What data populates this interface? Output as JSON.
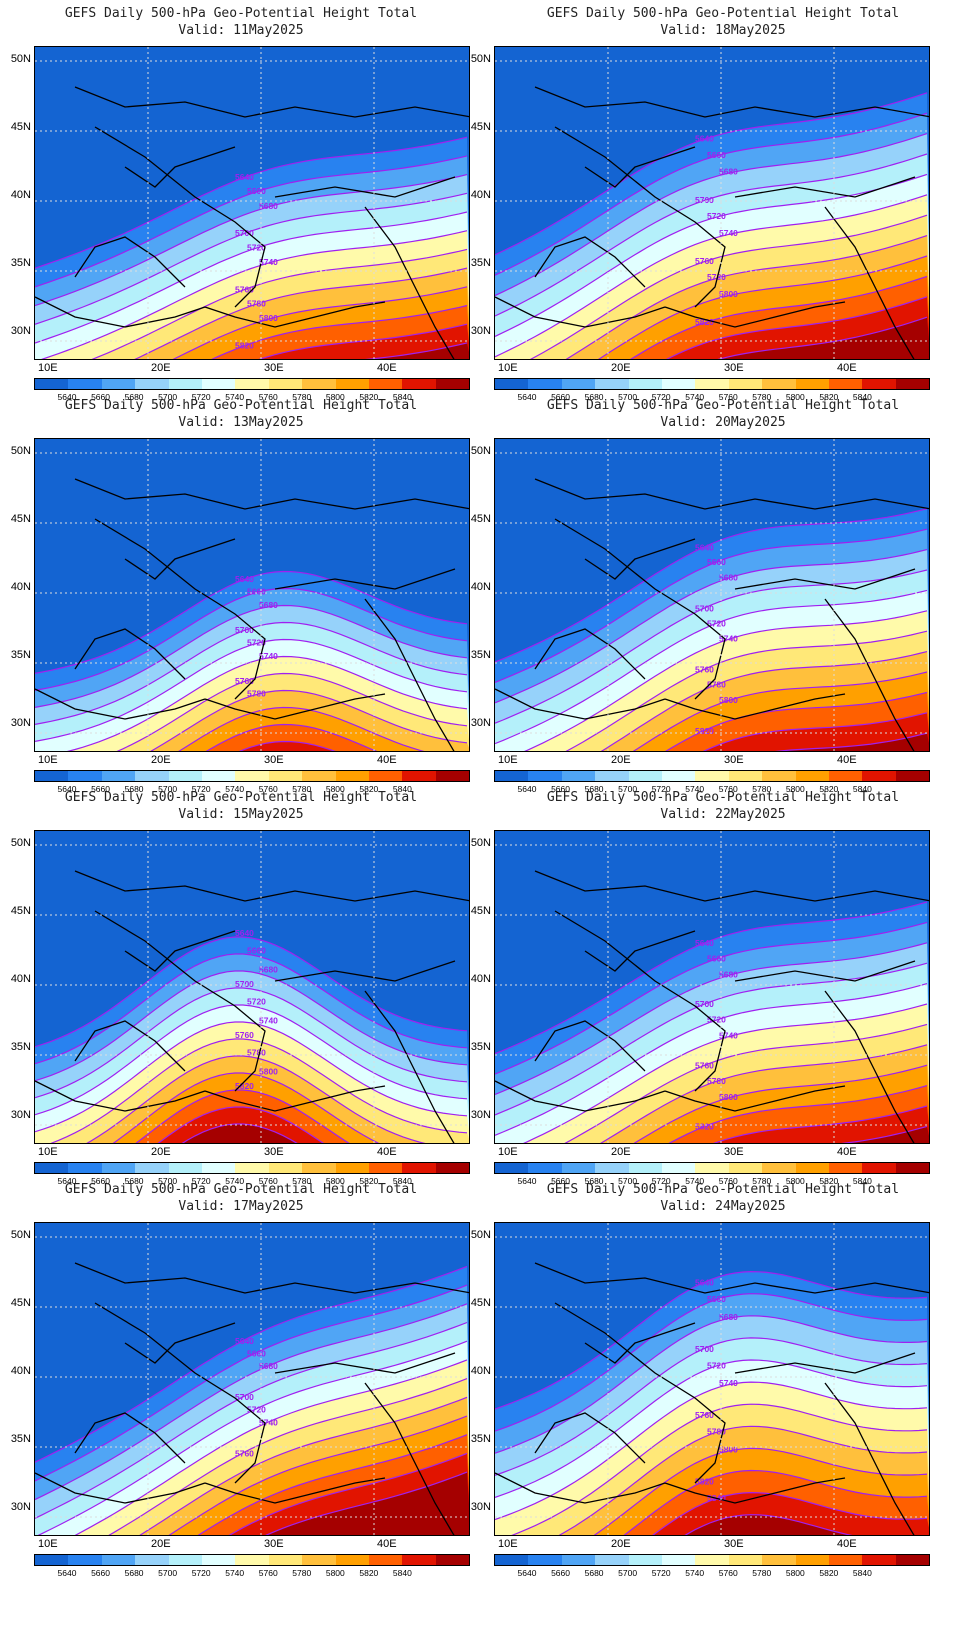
{
  "colorbar": {
    "levels": [
      "5640",
      "5660",
      "5680",
      "5700",
      "5720",
      "5740",
      "5760",
      "5780",
      "5800",
      "5820",
      "5840"
    ],
    "colors": [
      "#1464d2",
      "#2882f0",
      "#50a5f5",
      "#96d2fa",
      "#b4f0fa",
      "#e1ffff",
      "#fffaaa",
      "#ffe878",
      "#ffc03c",
      "#ffa000",
      "#ff6000",
      "#e11400",
      "#a50000"
    ]
  },
  "axes": {
    "lat_ticks": [
      "50N",
      "45N",
      "40N",
      "35N",
      "30N"
    ],
    "lon_ticks": [
      "10E",
      "20E",
      "30E",
      "40E"
    ]
  },
  "contour_color": "#a020f0",
  "panels": [
    {
      "title": "GEFS Daily 500-hPa Geo-Potential Height Total",
      "valid": "Valid: 11May2025",
      "labels": [
        [
          "5640",
          "5660",
          "5680",
          "5700",
          "5720",
          "5740",
          "5760",
          "5780",
          "5800",
          "5820",
          "5840"
        ]
      ]
    },
    {
      "title": "GEFS Daily 500-hPa Geo-Potential Height Total",
      "valid": "Valid: 18May2025",
      "labels": [
        [
          "5640",
          "5660",
          "5680",
          "5700",
          "5720",
          "5740",
          "5760",
          "5780",
          "5800",
          "5820"
        ]
      ]
    },
    {
      "title": "GEFS Daily 500-hPa Geo-Potential Height Total",
      "valid": "Valid: 13May2025",
      "labels": [
        [
          "5640",
          "5660",
          "5680",
          "5700",
          "5720",
          "5740",
          "5760",
          "5780"
        ]
      ]
    },
    {
      "title": "GEFS Daily 500-hPa Geo-Potential Height Total",
      "valid": "Valid: 20May2025",
      "labels": [
        [
          "5640",
          "5660",
          "5680",
          "5700",
          "5720",
          "5740",
          "5760",
          "5780",
          "5800",
          "5820"
        ]
      ]
    },
    {
      "title": "GEFS Daily 500-hPa Geo-Potential Height Total",
      "valid": "Valid: 15May2025",
      "labels": [
        [
          "5640",
          "5660",
          "5680",
          "5700",
          "5720",
          "5740",
          "5760",
          "5780",
          "5800",
          "5820"
        ]
      ]
    },
    {
      "title": "GEFS Daily 500-hPa Geo-Potential Height Total",
      "valid": "Valid: 22May2025",
      "labels": [
        [
          "5640",
          "5660",
          "5680",
          "5700",
          "5720",
          "5740",
          "5760",
          "5780",
          "5800",
          "5820"
        ]
      ]
    },
    {
      "title": "GEFS Daily 500-hPa Geo-Potential Height Total",
      "valid": "Valid: 17May2025",
      "labels": [
        [
          "5640",
          "5660",
          "5680",
          "5700",
          "5720",
          "5740",
          "5760"
        ]
      ]
    },
    {
      "title": "GEFS Daily 500-hPa Geo-Potential Height Total",
      "valid": "Valid: 24May2025",
      "labels": [
        [
          "5640",
          "5660",
          "5680",
          "5700",
          "5720",
          "5740",
          "5760",
          "5780",
          "5800",
          "5820",
          "5840"
        ]
      ]
    }
  ]
}
